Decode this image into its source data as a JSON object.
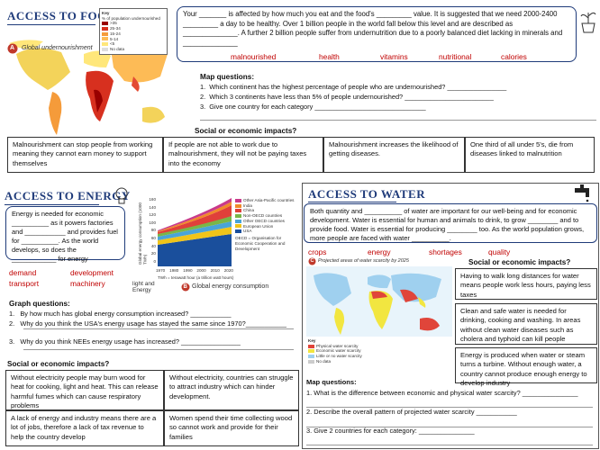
{
  "food": {
    "title": "ACCESS TO FOOD",
    "map_label": "A",
    "map_caption": "Global undernourishment",
    "key": {
      "title": "Key",
      "subtitle": "% of population undernourished",
      "items": [
        ">35",
        "25-34",
        "15-24",
        "5-14",
        "<5",
        "No data"
      ]
    },
    "paragraph": "Your _______ is affected by how much you eat and the food's _________ value.  It is suggested that we need 2000-2400 _________ a day to be healthy.  Over 1 billion people in the world fall below this level and are described as ______________. A further 2 billion people suffer from undernutrition due to a poorly balanced diet lacking in minerals and ______________",
    "word_bank": [
      "malnourished",
      "health",
      "vitamins",
      "nutritional",
      "calories"
    ],
    "questions_title": "Map questions:",
    "questions": [
      {
        "number": "1.",
        "text": "Which continent has the highest percentage of people who are undernourished? ________________"
      },
      {
        "number": "2.",
        "text": "Which 3 continents have less than 5% of people undernourished? ________________________"
      },
      {
        "number": "3.",
        "text": "Give one country for each category ______________________________"
      }
    ],
    "impacts_title": "Social or economic impacts?",
    "impacts": [
      "Malnourishment can stop people from working meaning they cannot earn money to support themselves",
      "If people are not able to work due to malnourishment, they will not be paying taxes into the economy",
      "Malnourishment increases the likelihood of getting diseases.",
      "One third of all under 5's, die from diseases linked to malnutrition"
    ]
  },
  "energy": {
    "title": "ACCESS TO ENERGY",
    "paragraph": "Energy is needed for economic __________ as it powers factories and ___________ and provides fuel for __________.  As the world develops, so does the ____________ for energy",
    "word_bank": [
      "demand",
      "development",
      "transport",
      "machinery"
    ],
    "figure": {
      "label": "B",
      "caption": "Global energy consumption",
      "side_note": "light and Energy",
      "y_label": "Global energy consumption (1000 TWh)",
      "y_ticks": [
        "160",
        "140",
        "120",
        "100",
        "80",
        "60",
        "40",
        "20",
        "0"
      ],
      "x_ticks": [
        "1970",
        "1980",
        "1990",
        "2000",
        "2010",
        "2020"
      ],
      "legend": [
        "Other Asia-Pacific countries",
        "India",
        "China",
        "Non-OECD countries",
        "Other OECD countries",
        "European Union",
        "USA"
      ],
      "notes": [
        "OECD = Organisation for Economic Cooperation and Development",
        "TWh = terawatt hour (a trillion watt hours)"
      ]
    },
    "questions_title": "Graph questions:",
    "questions": [
      {
        "number": "1.",
        "text": "By how much has global energy consumption increased? ___________"
      },
      {
        "number": "2.",
        "text": "Why do you think the USA's energy usage has stayed the same since 1970?___________"
      },
      {
        "number": "3.",
        "text": "Why do you think NEEs energy usage has increased? ________________"
      }
    ],
    "impacts_title": "Social or economic impacts?",
    "impacts": [
      "Without electricity people may burn wood for heat for cooking, light and heat. This can release harmful fumes which can cause respiratory problems",
      "Without electricity, countries can struggle to attract industry which can hinder development.",
      "A lack of energy and industry means there are a lot of jobs, therefore a lack of tax revenue to help the country develop",
      "Women spend their time collecting wood so cannot work and provide for their families"
    ]
  },
  "water": {
    "title": "ACCESS TO WATER",
    "paragraph": "Both quantity and __________ of water are important for our well-being and for economic development.  Water is essential for human and animals to drink, to grow ________ and to provide food.  Water is essential for producing ________ too.  As the world population grows, more people are faced with water __________.",
    "word_bank": [
      "crops",
      "energy",
      "shortages",
      "quality"
    ],
    "map_label": "C",
    "map_caption": "Projected areas of water scarcity by 2025",
    "key": {
      "title": "Key",
      "items": [
        "Physical water scarcity",
        "Economic water scarcity",
        "Little or no water scarcity",
        "No data"
      ]
    },
    "impacts_title": "Social or economic impacts?",
    "impacts": [
      "Having to walk long distances for water means people work less hours, paying less taxes",
      "Clean and safe water is needed for drinking, cooking and washing.  In areas without clean water diseases such as cholera and typhoid can kill people",
      "Energy is produced when water or steam turns a turbine.  Without enough water, a country cannot produce enough energy to develop industry"
    ],
    "questions_title": "Map questions:",
    "questions": [
      {
        "number": "1.",
        "text": "What is the difference between economic and physical water scarcity? _______________"
      },
      {
        "number": "2.",
        "text": "Describe the overall pattern of projected water scarcity ___________"
      },
      {
        "number": "3.",
        "text": "Give 2 countries for each category: _______________"
      }
    ]
  }
}
